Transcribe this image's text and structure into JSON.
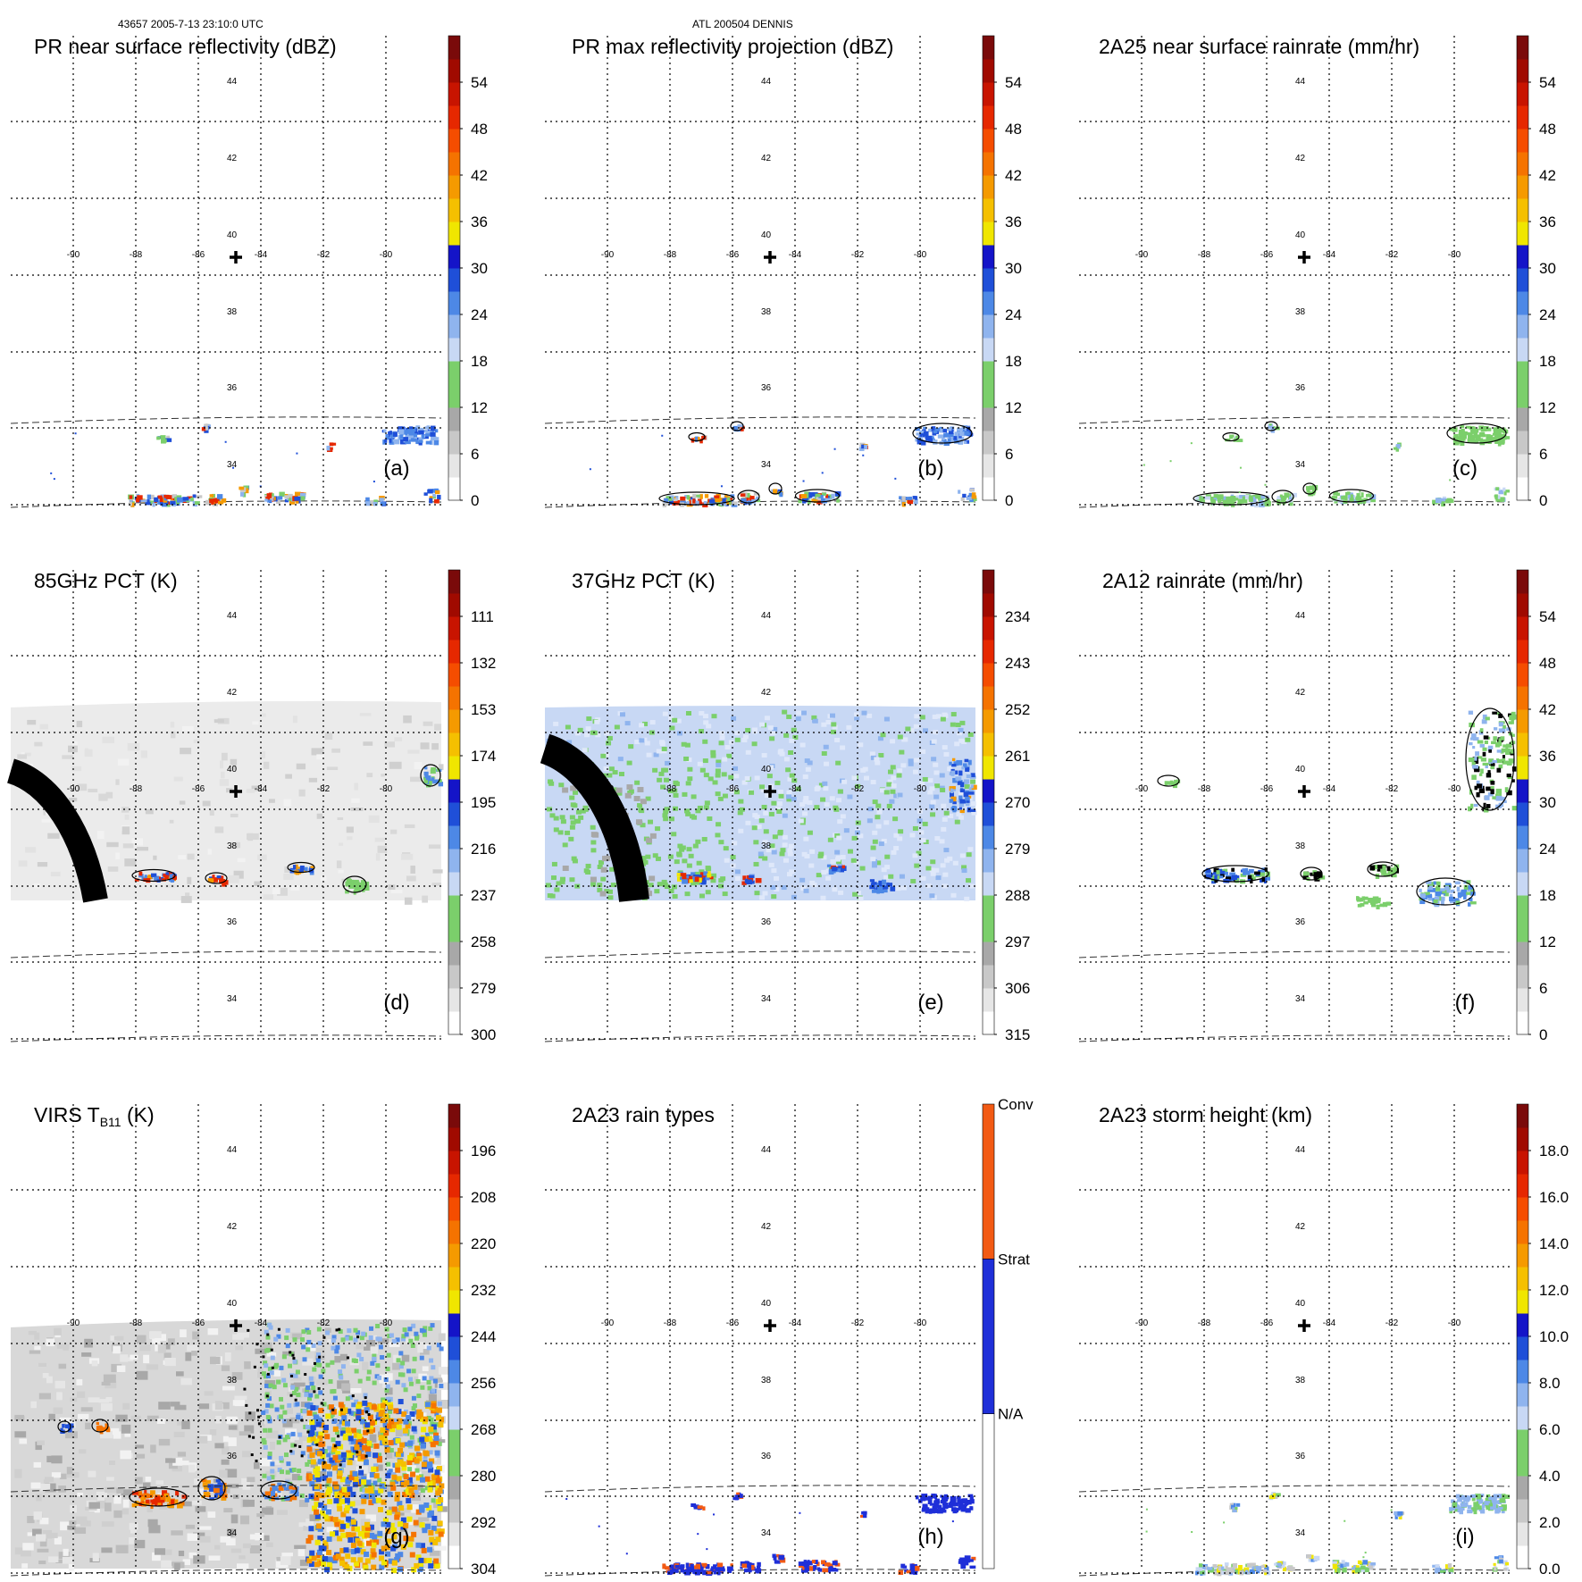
{
  "header": {
    "left": "43657 2005-7-13 23:10:0 UTC",
    "center": "ATL 200504 DENNIS"
  },
  "grid": {
    "lon_labels": [
      "-90",
      "-88",
      "-86",
      "-84",
      "-82",
      "-80"
    ],
    "lat_labels": [
      "44",
      "42",
      "40",
      "38",
      "36",
      "34"
    ]
  },
  "chart_data": [
    {
      "id": "a",
      "type": "heatmap",
      "title": "PR near surface reflectivity (dBZ)",
      "tag": "(a)",
      "field": "precip",
      "swath": "narrow",
      "colorbar": {
        "ticks": [
          "0",
          "6",
          "12",
          "18",
          "24",
          "30",
          "36",
          "42",
          "48",
          "54"
        ],
        "units": "dBZ"
      }
    },
    {
      "id": "b",
      "type": "heatmap",
      "title": "PR max reflectivity projection (dBZ)",
      "tag": "(b)",
      "field": "precip",
      "swath": "narrow",
      "colorbar": {
        "ticks": [
          "0",
          "6",
          "12",
          "18",
          "24",
          "30",
          "36",
          "42",
          "48",
          "54"
        ],
        "units": "dBZ"
      }
    },
    {
      "id": "c",
      "type": "heatmap",
      "title": "2A25 near surface rainrate (mm/hr)",
      "tag": "(c)",
      "field": "rain",
      "swath": "narrow",
      "colorbar": {
        "ticks": [
          "0",
          "6",
          "12",
          "18",
          "24",
          "30",
          "36",
          "42",
          "48",
          "54"
        ],
        "units": "mm/hr"
      }
    },
    {
      "id": "d",
      "type": "heatmap",
      "title": "85GHz PCT (K)",
      "tag": "(d)",
      "field": "pct85",
      "swath": "wide",
      "colorbar": {
        "ticks": [
          "300",
          "279",
          "258",
          "237",
          "216",
          "195",
          "174",
          "153",
          "132",
          "111"
        ],
        "units": "K"
      }
    },
    {
      "id": "e",
      "type": "heatmap",
      "title": "37GHz PCT (K)",
      "tag": "(e)",
      "field": "pct37",
      "swath": "wide",
      "colorbar": {
        "ticks": [
          "315",
          "306",
          "297",
          "288",
          "279",
          "270",
          "261",
          "252",
          "243",
          "234"
        ],
        "units": "K"
      }
    },
    {
      "id": "f",
      "type": "heatmap",
      "title": "2A12 rainrate (mm/hr)",
      "tag": "(f)",
      "field": "rain12",
      "swath": "wide",
      "colorbar": {
        "ticks": [
          "0",
          "6",
          "12",
          "18",
          "24",
          "30",
          "36",
          "42",
          "48",
          "54"
        ],
        "units": "mm/hr"
      }
    },
    {
      "id": "g",
      "type": "heatmap",
      "title_main": "VIRS T",
      "title_sub": "B11",
      "title_end": " (K)",
      "tag": "(g)",
      "field": "virs",
      "swath": "virs",
      "colorbar": {
        "ticks": [
          "304",
          "292",
          "280",
          "268",
          "256",
          "244",
          "232",
          "220",
          "208",
          "196"
        ],
        "units": "K"
      }
    },
    {
      "id": "h",
      "type": "heatmap",
      "title": "2A23 rain types",
      "tag": "(h)",
      "field": "types",
      "swath": "narrow",
      "colorbar": {
        "categorical": true,
        "labels": [
          "N/A",
          "Strat",
          "Conv"
        ]
      }
    },
    {
      "id": "i",
      "type": "heatmap",
      "title": "2A23 storm height (km)",
      "tag": "(i)",
      "field": "height",
      "swath": "narrow",
      "colorbar": {
        "ticks": [
          "0.0",
          "2.0",
          "4.0",
          "6.0",
          "8.0",
          "10.0",
          "12.0",
          "14.0",
          "16.0",
          "18.0"
        ],
        "units": "km"
      }
    }
  ],
  "colors": {
    "precip_scale": [
      "#ffffff",
      "#e6e6e6",
      "#c8c8c8",
      "#a8a8a8",
      "#7bcf6b",
      "#7bcf6b",
      "#c8d8f4",
      "#8fb4ee",
      "#4d88e6",
      "#1f4fd8",
      "#1414c8",
      "#f0e600",
      "#f5c000",
      "#f59a00",
      "#f57300",
      "#f54d00",
      "#e62800",
      "#c81400",
      "#a00a00",
      "#7a0a0a",
      "#5a1010"
    ],
    "rain_scale": [
      "#7bcf6b",
      "#7bcf6b",
      "#c8d8f4",
      "#8fb4ee",
      "#4d88e6",
      "#1f4fd8",
      "#1414c8",
      "#f0e600",
      "#f5c000",
      "#f59a00",
      "#f57300",
      "#f54d00",
      "#e62800",
      "#c81400",
      "#a00a00",
      "#7a0a0a",
      "#5a1010"
    ],
    "conv": "#f25a14",
    "strat": "#1f2fd8",
    "na": "#ffffff"
  }
}
